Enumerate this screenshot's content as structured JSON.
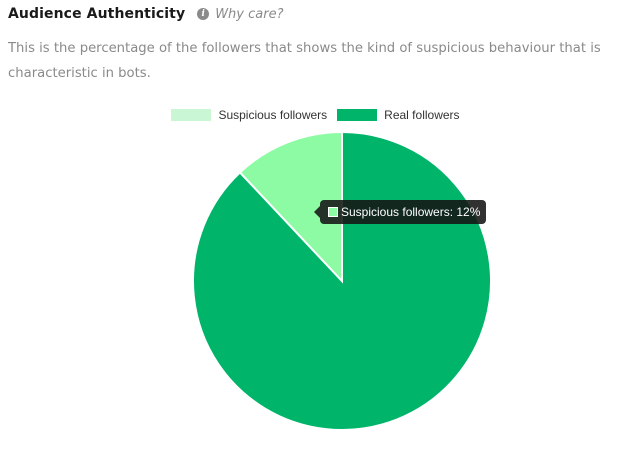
{
  "header": {
    "title": "Audience Authenticity",
    "info_icon": "info-icon",
    "help_link": "Why care?"
  },
  "description": "This is the percentage of the followers that shows the kind of suspicious behaviour that is characteristic in bots.",
  "colors": {
    "suspicious": "#8cfba3",
    "suspicious_legend": "#c9f7d6",
    "real": "#00b46a"
  },
  "chart_data": {
    "type": "pie",
    "title": "",
    "legend_position": "top",
    "categories": [
      "Suspicious followers",
      "Real followers"
    ],
    "values": [
      12,
      88
    ],
    "colors": [
      "#8cfba3",
      "#00b46a"
    ],
    "legend_colors": [
      "#c9f7d6",
      "#00b46a"
    ],
    "tooltip": {
      "label": "Suspicious followers: 12%",
      "category_index": 0
    }
  }
}
